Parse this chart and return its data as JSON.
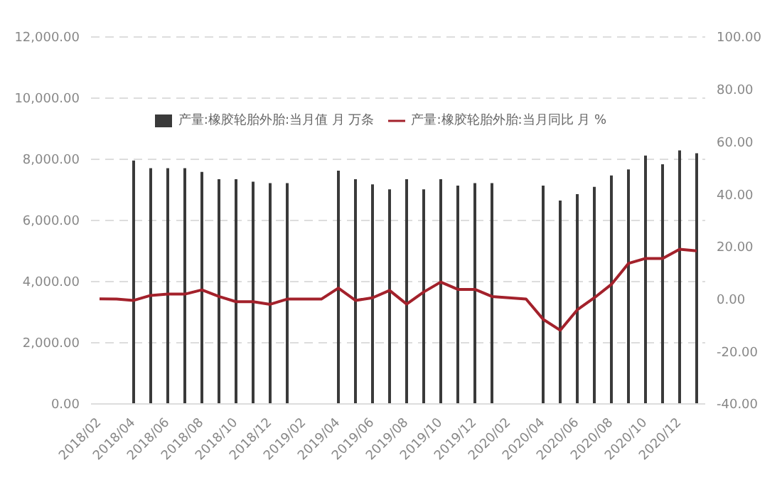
{
  "chart_data": {
    "type": "bar",
    "categories": [
      "2018/02",
      null,
      "2018/04",
      null,
      "2018/06",
      null,
      "2018/08",
      null,
      "2018/10",
      null,
      "2018/12",
      null,
      "2019/02",
      null,
      "2019/04",
      null,
      "2019/06",
      null,
      "2019/08",
      null,
      "2019/10",
      null,
      "2019/12",
      null,
      "2020/02",
      null,
      "2020/04",
      null,
      "2020/06",
      null,
      "2020/08",
      null,
      "2020/10",
      null,
      "2020/12",
      null
    ],
    "series": [
      {
        "name": "产量:橡胶轮胎外胎:当月值 月 万条",
        "color": "#3a3a3a",
        "values": [
          null,
          null,
          7960,
          7710,
          7710,
          7710,
          7590,
          7350,
          7350,
          7270,
          7220,
          7220,
          null,
          null,
          7630,
          7350,
          7180,
          7020,
          7350,
          7020,
          7350,
          7140,
          7220,
          7220,
          null,
          null,
          7140,
          6650,
          6860,
          7100,
          7470,
          7670,
          8120,
          7840,
          8290,
          8200
        ]
      },
      {
        "name": "产量:橡胶轮胎外胎:当月同比 月 %",
        "type": "line",
        "axis": "y2",
        "color": "#a3212b",
        "values": [
          0.1,
          0,
          -0.5,
          1.4,
          1.9,
          1.9,
          3.5,
          1,
          -1,
          -1,
          -2,
          0,
          0,
          0,
          4.2,
          -0.5,
          0.5,
          3.3,
          -1.9,
          2.7,
          6.5,
          3.7,
          3.7,
          1,
          0.5,
          0,
          -7.7,
          -11.9,
          -4.1,
          0.5,
          5.6,
          13.6,
          15.5,
          15.5,
          19,
          18.4
        ]
      }
    ],
    "ylim": [
      0,
      12000
    ],
    "yticks": [
      {
        "value": 0,
        "label": "0.00"
      },
      {
        "value": 2000,
        "label": "2,000.00"
      },
      {
        "value": 4000,
        "label": "4,000.00"
      },
      {
        "value": 6000,
        "label": "6,000.00"
      },
      {
        "value": 8000,
        "label": "8,000.00"
      },
      {
        "value": 10000,
        "label": "10,000.00"
      },
      {
        "value": 12000,
        "label": "12,000.00"
      }
    ],
    "y2lim": [
      -40,
      100
    ],
    "y2ticks": [
      {
        "value": -40,
        "label": "-40.00"
      },
      {
        "value": -20,
        "label": "-20.00"
      },
      {
        "value": 0,
        "label": "0.00"
      },
      {
        "value": 20,
        "label": "20.00"
      },
      {
        "value": 40,
        "label": "40.00"
      },
      {
        "value": 60,
        "label": "60.00"
      },
      {
        "value": 80,
        "label": "80.00"
      },
      {
        "value": 100,
        "label": "100.00"
      }
    ],
    "grid": "y",
    "legend": "top",
    "marker": "none"
  }
}
